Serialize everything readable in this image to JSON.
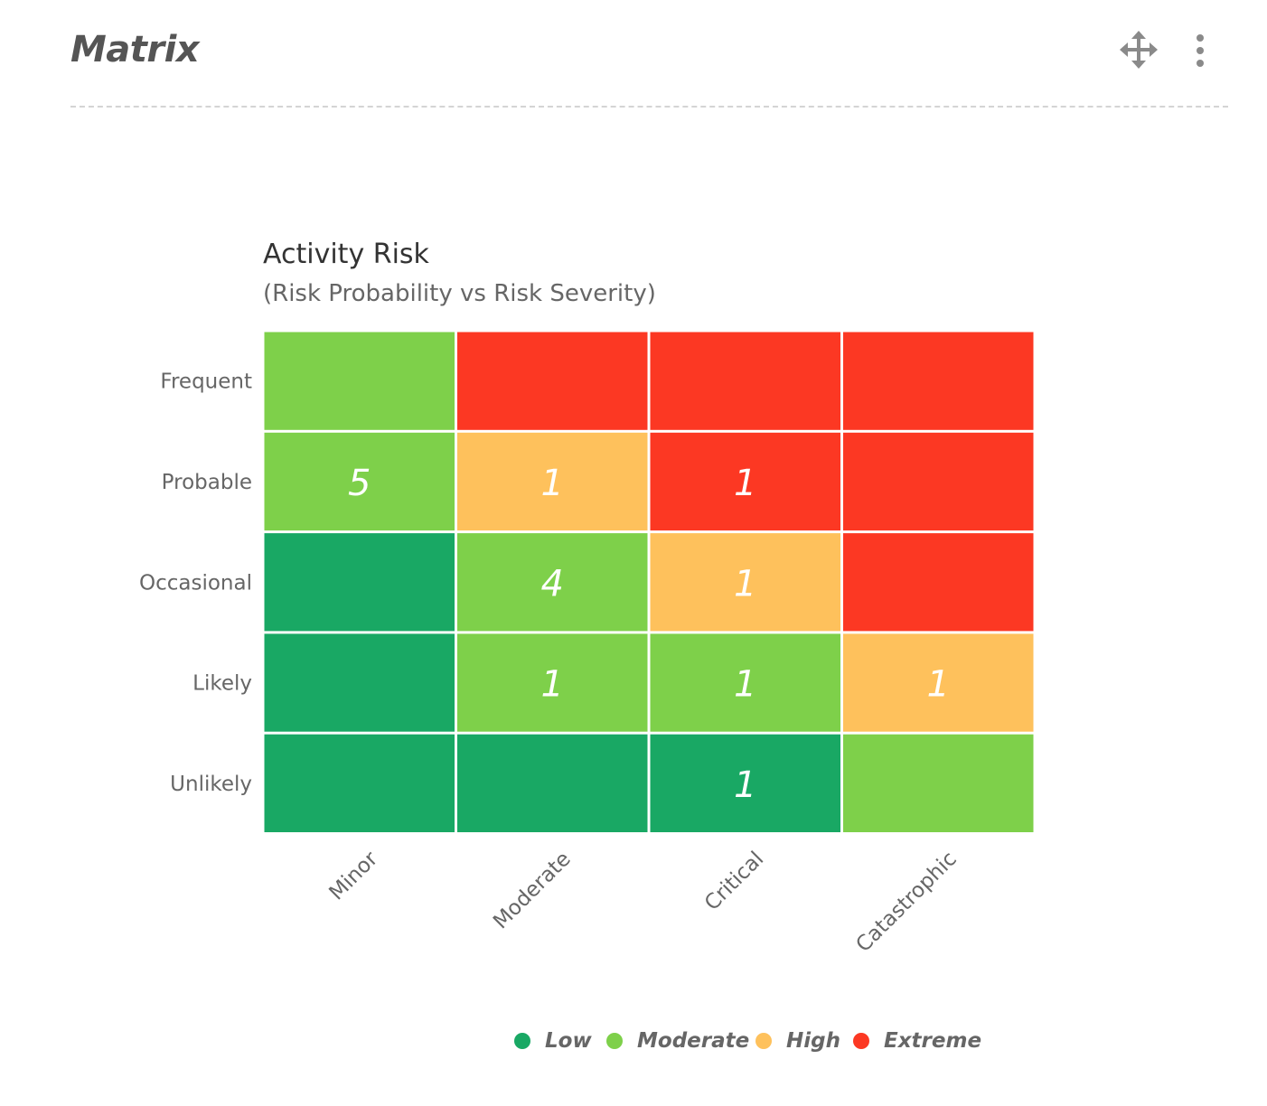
{
  "widget": {
    "title": "Matrix",
    "move_icon": "move-arrows-icon",
    "menu_icon": "vertical-ellipsis-icon"
  },
  "colors": {
    "low": "#19a864",
    "moderate": "#7ed04a",
    "high": "#fec15c",
    "extreme": "#fc3823",
    "count_text": "#ffffff",
    "axis_text": "#666666",
    "title_text": "#333333"
  },
  "chart_data": {
    "type": "heatmap",
    "title": "Activity Risk",
    "subtitle": "(Risk Probability vs Risk Severity)",
    "x_categories": [
      "Minor",
      "Moderate",
      "Critical",
      "Catastrophic"
    ],
    "y_categories": [
      "Frequent",
      "Probable",
      "Occasional",
      "Likely",
      "Unlikely"
    ],
    "risk_levels": [
      "Low",
      "Moderate",
      "High",
      "Extreme"
    ],
    "cell_levels": [
      [
        "Moderate",
        "Extreme",
        "Extreme",
        "Extreme"
      ],
      [
        "Moderate",
        "High",
        "Extreme",
        "Extreme"
      ],
      [
        "Low",
        "Moderate",
        "High",
        "Extreme"
      ],
      [
        "Low",
        "Moderate",
        "Moderate",
        "High"
      ],
      [
        "Low",
        "Low",
        "Low",
        "Moderate"
      ]
    ],
    "counts": [
      [
        null,
        null,
        null,
        null
      ],
      [
        5,
        1,
        1,
        null
      ],
      [
        null,
        4,
        1,
        null
      ],
      [
        null,
        1,
        1,
        1
      ],
      [
        null,
        null,
        1,
        null
      ]
    ],
    "legend": [
      {
        "name": "Low",
        "color": "#19a864"
      },
      {
        "name": "Moderate",
        "color": "#7ed04a"
      },
      {
        "name": "High",
        "color": "#fec15c"
      },
      {
        "name": "Extreme",
        "color": "#fc3823"
      }
    ],
    "legend_position": "bottom-center"
  }
}
